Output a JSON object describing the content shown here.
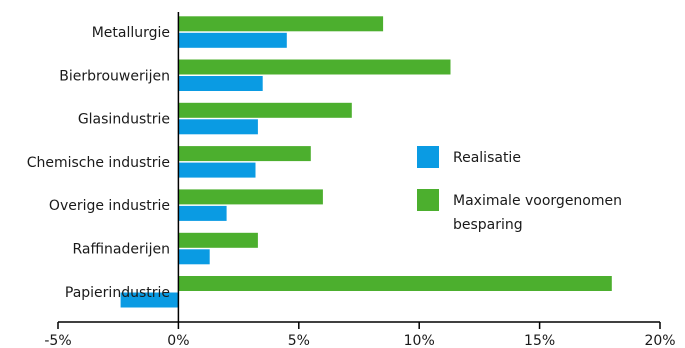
{
  "chart_data": {
    "type": "bar",
    "orientation": "horizontal",
    "categories": [
      "Metallurgie",
      "Bierbrouwerijen",
      "Glasindustrie",
      "Chemische industrie",
      "Overige industrie",
      "Raffinaderijen",
      "Papierindustrie"
    ],
    "series": [
      {
        "name": "Maximale voorgenomen besparing",
        "color": "#4caf2e",
        "values": [
          8.5,
          11.3,
          7.2,
          5.5,
          6.0,
          3.3,
          18.0
        ]
      },
      {
        "name": "Realisatie",
        "color": "#0a9be3",
        "values": [
          4.5,
          3.5,
          3.3,
          3.2,
          2.0,
          1.3,
          -2.4
        ]
      }
    ],
    "xlim": [
      -5,
      20
    ],
    "xticks": [
      -5,
      0,
      5,
      10,
      15,
      20
    ],
    "xtick_labels": [
      "-5%",
      "0%",
      "5%",
      "10%",
      "15%",
      "20%"
    ],
    "grid": false,
    "legend_position": "right",
    "legend": [
      {
        "name": "Realisatie",
        "color": "#0a9be3",
        "lines": [
          "Realisatie"
        ]
      },
      {
        "name": "Maximale voorgenomen besparing",
        "color": "#4caf2e",
        "lines": [
          "Maximale voorgenomen",
          "besparing"
        ]
      }
    ]
  }
}
